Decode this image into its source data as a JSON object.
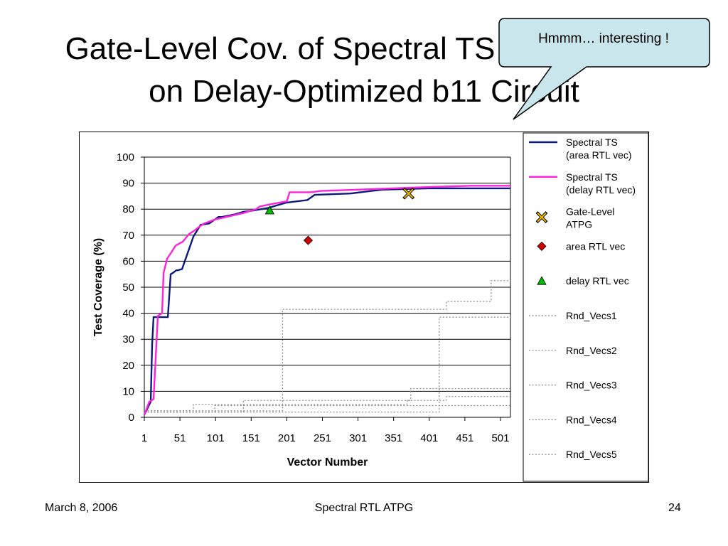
{
  "slide": {
    "title_line1": "Gate-Level Cov. of Spectral TS",
    "title_line2": "on Delay-Optimized b11 Circuit",
    "callout": "Hmmm… interesting !",
    "footer_date": "March 8, 2006",
    "footer_center": "Spectral RTL ATPG",
    "footer_page": "24"
  },
  "chart_data": {
    "type": "line",
    "title": "",
    "xlabel": "Vector Number",
    "ylabel": "Test Coverage (%)",
    "xlim": [
      1,
      515
    ],
    "ylim": [
      0,
      100
    ],
    "xticks": [
      1,
      51,
      101,
      151,
      201,
      251,
      301,
      351,
      401,
      451,
      501
    ],
    "yticks": [
      0,
      10,
      20,
      30,
      40,
      50,
      60,
      70,
      80,
      90,
      100
    ],
    "grid": "horizontal",
    "legend_position": "right",
    "series": [
      {
        "name": "Spectral TS\n(area RTL vec)",
        "color": "#0c1a7a",
        "style": "solid",
        "x": [
          1,
          10,
          12,
          14,
          34,
          38,
          41,
          46,
          48,
          54,
          61,
          70,
          80,
          92,
          105,
          110,
          128,
          140,
          155,
          175,
          200,
          230,
          240,
          290,
          320,
          335,
          400,
          450,
          515
        ],
        "y": [
          1,
          6,
          28,
          38.5,
          38.5,
          55,
          55.5,
          56.5,
          56.5,
          57,
          62.5,
          69.5,
          74,
          74.5,
          77,
          77,
          78,
          79,
          79.5,
          80.5,
          82.5,
          83.5,
          85.5,
          86,
          87,
          87.5,
          88,
          88,
          88
        ]
      },
      {
        "name": "Spectral TS\n(delay RTL vec)",
        "color": "#ff22dd",
        "style": "solid",
        "x": [
          1,
          8,
          14,
          20,
          26,
          28,
          33,
          38,
          45,
          55,
          64,
          70,
          77,
          85,
          100,
          140,
          158,
          163,
          180,
          201,
          205,
          235,
          248,
          300,
          350,
          400,
          460,
          515
        ],
        "y": [
          1,
          6,
          7,
          39,
          40,
          55.5,
          61,
          63,
          66,
          67.5,
          70.5,
          71.5,
          73,
          74.5,
          76,
          78.5,
          80,
          81,
          82,
          83,
          86.5,
          86.5,
          87,
          87.5,
          88,
          88.5,
          89,
          89
        ]
      },
      {
        "name": "Gate-Level\nATPG",
        "color": "#e8b400",
        "marker": "star",
        "x": [
          372
        ],
        "y": [
          86
        ]
      },
      {
        "name": "area RTL vec",
        "color": "#cc0000",
        "marker": "diamond",
        "x": [
          231
        ],
        "y": [
          68
        ]
      },
      {
        "name": "delay RTL vec",
        "color": "#00bb00",
        "marker": "triangle",
        "x": [
          177
        ],
        "y": [
          79.5
        ]
      },
      {
        "name": "Rnd_Vecs1",
        "color": "#888888",
        "style": "dotted",
        "x": [
          1,
          195,
          195,
          425,
          425,
          488,
          488,
          515
        ],
        "y": [
          2.5,
          2.5,
          41.5,
          41.5,
          44.5,
          44.5,
          52.5,
          52.5
        ]
      },
      {
        "name": "Rnd_Vecs2",
        "color": "#888888",
        "style": "dotted",
        "x": [
          1,
          415,
          415,
          515
        ],
        "y": [
          2,
          2,
          38.5,
          38.5
        ]
      },
      {
        "name": "Rnd_Vecs3",
        "color": "#888888",
        "style": "dotted",
        "x": [
          1,
          70,
          70,
          370,
          370,
          375,
          375,
          515
        ],
        "y": [
          2.5,
          2.5,
          5,
          5,
          6.5,
          6.5,
          11,
          11
        ]
      },
      {
        "name": "Rnd_Vecs4",
        "color": "#888888",
        "style": "dotted",
        "x": [
          1,
          140,
          140,
          425,
          425,
          515
        ],
        "y": [
          2,
          2,
          6.5,
          6.5,
          8,
          8
        ]
      },
      {
        "name": "Rnd_Vecs5",
        "color": "#888888",
        "style": "dotted",
        "x": [
          1,
          100,
          100,
          515
        ],
        "y": [
          2,
          2,
          4.5,
          4.5
        ]
      }
    ]
  }
}
